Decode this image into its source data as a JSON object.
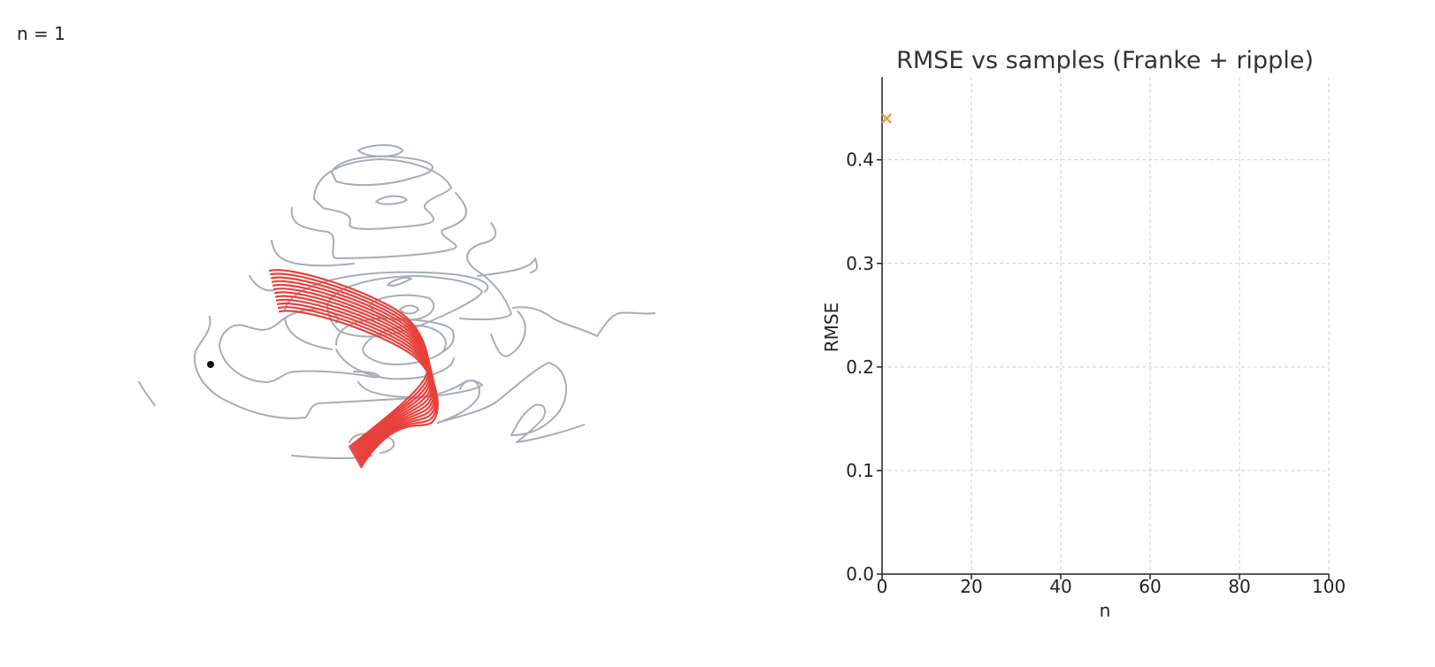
{
  "counter_text": "n = 1",
  "colors": {
    "contour": "#a7adb6",
    "surface": "#e8413c",
    "point": "#111111",
    "marker": "#e9a23b"
  },
  "chart_data": {
    "type": "scatter",
    "title": "RMSE vs samples (Franke + ripple)",
    "xlabel": "n",
    "ylabel": "RMSE",
    "xlim": [
      0,
      100
    ],
    "ylim": [
      0,
      0.48
    ],
    "xticks": [
      0,
      20,
      40,
      60,
      80,
      100
    ],
    "yticks": [
      0.0,
      0.1,
      0.2,
      0.3,
      0.4
    ],
    "ytick_labels": [
      "0.0",
      "0.1",
      "0.2",
      "0.3",
      "0.4"
    ],
    "grid": true,
    "marker": "x",
    "series": [
      {
        "x": [
          1
        ],
        "y": [
          0.44
        ]
      }
    ]
  }
}
